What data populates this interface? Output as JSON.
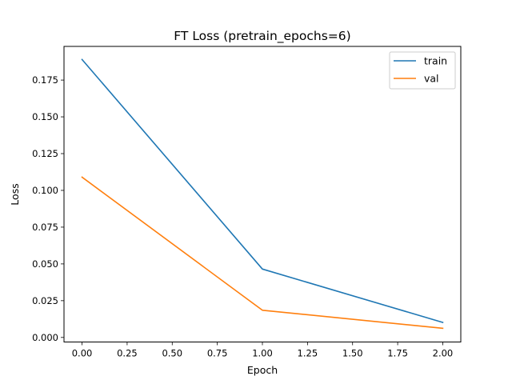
{
  "chart_data": {
    "type": "line",
    "title": "FT Loss (pretrain_epochs=6)",
    "xlabel": "Epoch",
    "ylabel": "Loss",
    "xlim": [
      -0.1,
      2.1
    ],
    "ylim": [
      -0.0031,
      0.1979
    ],
    "xticks": [
      0.0,
      0.25,
      0.5,
      0.75,
      1.0,
      1.25,
      1.5,
      1.75,
      2.0
    ],
    "xtick_labels": [
      "0.00",
      "0.25",
      "0.50",
      "0.75",
      "1.00",
      "1.25",
      "1.50",
      "1.75",
      "2.00"
    ],
    "yticks": [
      0.0,
      0.025,
      0.05,
      0.075,
      0.1,
      0.125,
      0.15,
      0.175
    ],
    "ytick_labels": [
      "0.000",
      "0.025",
      "0.050",
      "0.075",
      "0.100",
      "0.125",
      "0.150",
      "0.175"
    ],
    "grid": false,
    "legend_position": "top-right",
    "x": [
      0,
      1,
      2
    ],
    "series": [
      {
        "name": "train",
        "color": "#1f77b4",
        "values": [
          0.189,
          0.0465,
          0.0102
        ]
      },
      {
        "name": "val",
        "color": "#ff7f0e",
        "values": [
          0.109,
          0.0185,
          0.0062
        ]
      }
    ]
  }
}
